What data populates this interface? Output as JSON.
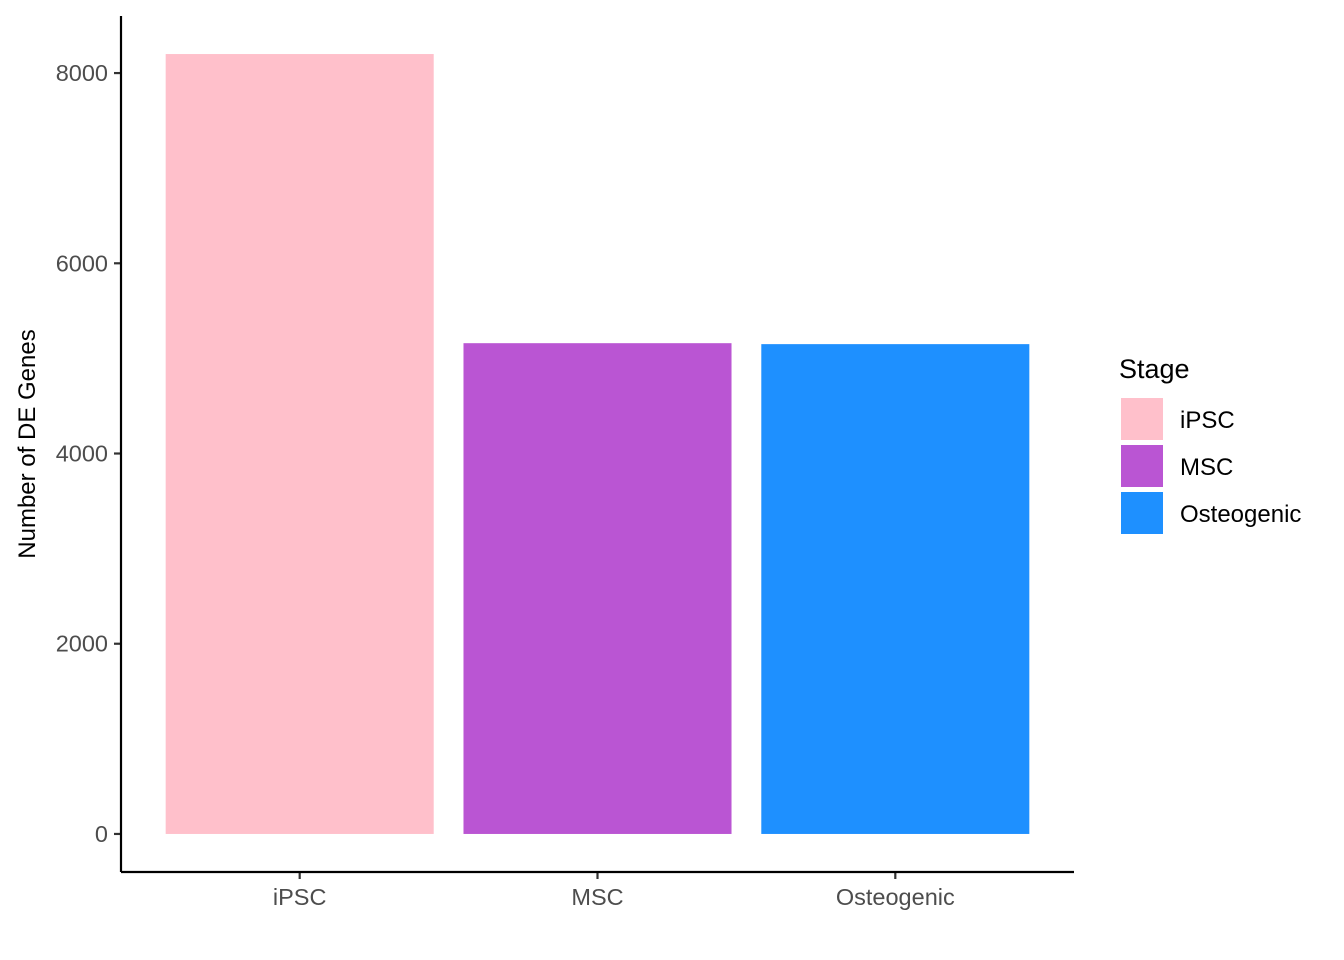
{
  "chart_data": {
    "type": "bar",
    "categories": [
      "iPSC",
      "MSC",
      "Osteogenic"
    ],
    "values": [
      8200,
      5160,
      5150
    ],
    "colors": [
      "#FFC0CB",
      "#BA55D3",
      "#1E90FF"
    ],
    "title": "",
    "xlabel": "",
    "ylabel": "Number of DE Genes",
    "ylim": [
      -400,
      8600
    ],
    "yticks": [
      0,
      2000,
      4000,
      6000,
      8000
    ],
    "grid": false,
    "legend": {
      "title": "Stage",
      "position": "right",
      "entries": [
        "iPSC",
        "MSC",
        "Osteogenic"
      ]
    }
  }
}
